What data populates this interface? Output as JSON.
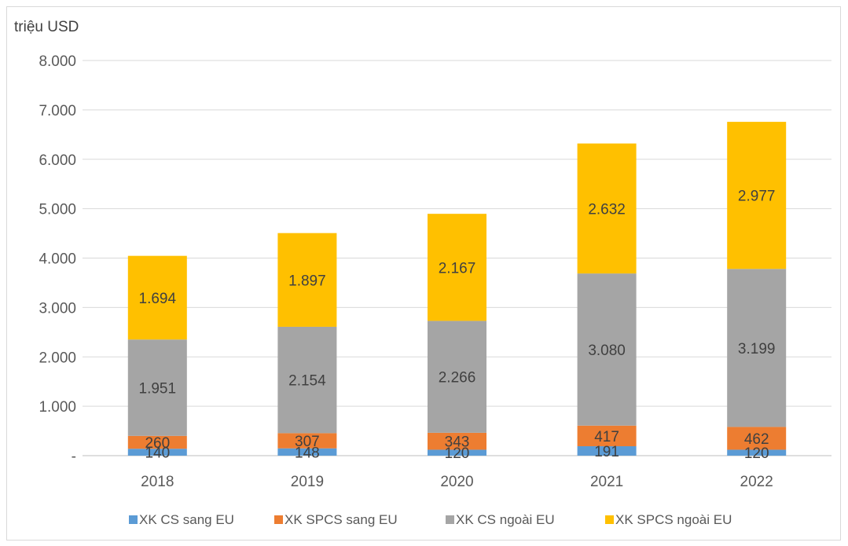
{
  "chart_data": {
    "type": "bar",
    "stacked": true,
    "unit_label": "triệu USD",
    "categories": [
      "2018",
      "2019",
      "2020",
      "2021",
      "2022"
    ],
    "y_tick_labels": [
      "-",
      "1.000",
      "2.000",
      "3.000",
      "4.000",
      "5.000",
      "6.000",
      "7.000",
      "8.000"
    ],
    "ylim": [
      0,
      8000
    ],
    "grid": true,
    "legend_position": "bottom",
    "series": [
      {
        "name": "XK CS sang EU",
        "color": "#5b9bd5",
        "values": [
          140,
          148,
          120,
          191,
          120
        ],
        "labels": [
          "140",
          "148",
          "120",
          "191",
          "120"
        ]
      },
      {
        "name": "XK SPCS sang EU",
        "color": "#ed7d31",
        "values": [
          260,
          307,
          343,
          417,
          462
        ],
        "labels": [
          "260",
          "307",
          "343",
          "417",
          "462"
        ]
      },
      {
        "name": "XK CS ngoài EU",
        "color": "#a5a5a5",
        "values": [
          1951,
          2154,
          2266,
          3080,
          3199
        ],
        "labels": [
          "1.951",
          "2.154",
          "2.266",
          "3.080",
          "3.199"
        ]
      },
      {
        "name": "XK SPCS ngoài EU",
        "color": "#ffc000",
        "values": [
          1694,
          1897,
          2167,
          2632,
          2977
        ],
        "labels": [
          "1.694",
          "1.897",
          "2.167",
          "2.632",
          "2.977"
        ]
      }
    ]
  }
}
